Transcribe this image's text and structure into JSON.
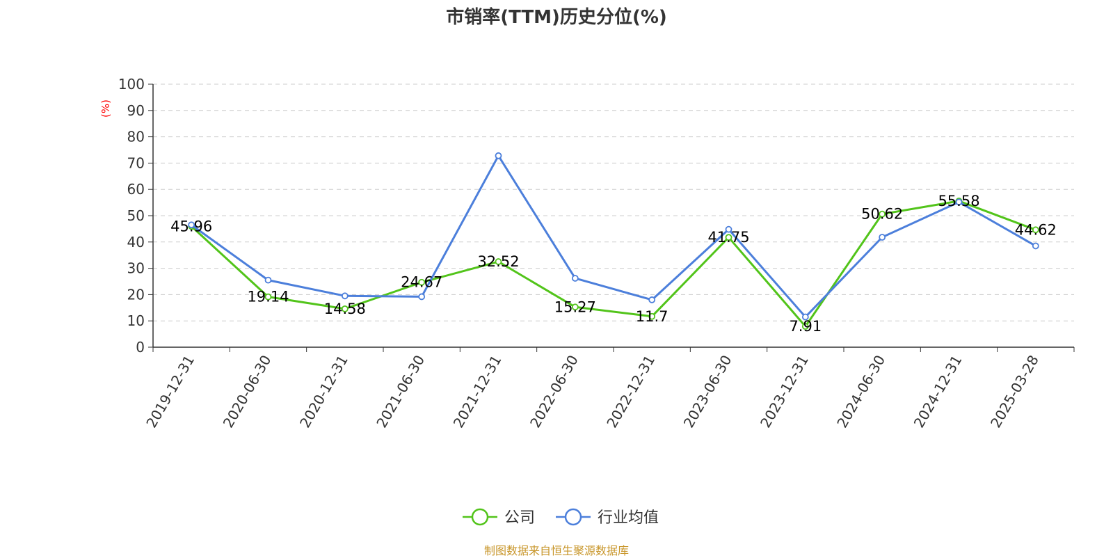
{
  "source": "制图数据来自恒生聚源数据库",
  "colors": {
    "company": "#52c41a",
    "industry": "#4c7fdb",
    "unit_label": "#ff0000",
    "source": "#c8962a"
  },
  "chart_data": {
    "type": "line",
    "title": "市销率(TTM)历史分位(%)",
    "ylabel": "(%)",
    "xlabel": "",
    "ylim": [
      0,
      100
    ],
    "yticks": [
      0,
      10,
      20,
      30,
      40,
      50,
      60,
      70,
      80,
      90,
      100
    ],
    "grid": true,
    "legend_position": "bottom-center",
    "categories": [
      "2019-12-31",
      "2020-06-30",
      "2020-12-31",
      "2021-06-30",
      "2021-12-31",
      "2022-06-30",
      "2022-12-31",
      "2023-06-30",
      "2023-12-31",
      "2024-06-30",
      "2024-12-31",
      "2025-03-28"
    ],
    "series": [
      {
        "name": "公司",
        "color": "#52c41a",
        "values": [
          45.96,
          19.14,
          14.58,
          24.67,
          32.52,
          15.27,
          11.7,
          41.75,
          7.91,
          50.62,
          55.58,
          44.62
        ],
        "labels": [
          "45.96",
          "19.14",
          "14.58",
          "24.67",
          "32.52",
          "15.27",
          "11.7",
          "41.75",
          "7.91",
          "50.62",
          "55.58",
          "44.62"
        ]
      },
      {
        "name": "行业均值",
        "color": "#4c7fdb",
        "values": [
          46.5,
          25.5,
          19.5,
          19.2,
          72.8,
          26.2,
          18.0,
          44.8,
          11.5,
          41.8,
          55.2,
          38.5
        ]
      }
    ]
  }
}
